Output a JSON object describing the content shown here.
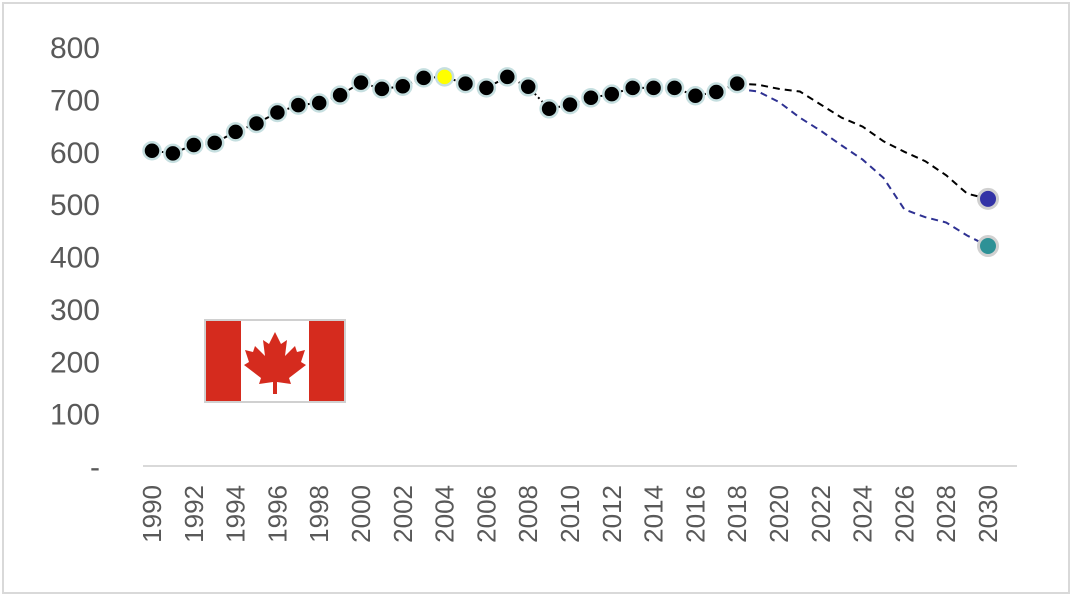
{
  "chart_data": {
    "type": "line",
    "title": "",
    "xlabel": "",
    "ylabel": "",
    "xlim": [
      1990,
      2030
    ],
    "ylim": [
      0,
      800
    ],
    "y_ticks": [
      {
        "value": 800,
        "label": "800"
      },
      {
        "value": 700,
        "label": "700"
      },
      {
        "value": 600,
        "label": "600"
      },
      {
        "value": 500,
        "label": "500"
      },
      {
        "value": 400,
        "label": "400"
      },
      {
        "value": 300,
        "label": "300"
      },
      {
        "value": 200,
        "label": "200"
      },
      {
        "value": 100,
        "label": "100"
      },
      {
        "value": 0,
        "label": "-"
      }
    ],
    "x_ticks": [
      "1990",
      "1992",
      "1994",
      "1996",
      "1998",
      "2000",
      "2002",
      "2004",
      "2006",
      "2008",
      "2010",
      "2012",
      "2014",
      "2016",
      "2018",
      "2020",
      "2022",
      "2024",
      "2026",
      "2028",
      "2030"
    ],
    "grid": false,
    "legend": "none",
    "series": [
      {
        "style": "markers-dash-dot",
        "color": "#000000",
        "marker_edge": "#c6dfe0",
        "highlight": {
          "year": 2004,
          "color": "#ffff00"
        },
        "x": [
          1990,
          1991,
          1992,
          1993,
          1994,
          1995,
          1996,
          1997,
          1998,
          1999,
          2000,
          2001,
          2002,
          2003,
          2004,
          2005,
          2006,
          2007,
          2008,
          2009,
          2010,
          2011,
          2012,
          2013,
          2014,
          2015,
          2016,
          2017,
          2018
        ],
        "y": [
          602,
          597,
          613,
          617,
          638,
          654,
          675,
          689,
          693,
          708,
          732,
          720,
          725,
          741,
          743,
          730,
          722,
          743,
          724,
          682,
          690,
          703,
          710,
          722,
          722,
          722,
          707,
          714,
          730
        ]
      },
      {
        "style": "dashed",
        "color": "#000000",
        "x": [
          2018,
          2019,
          2020,
          2021,
          2022,
          2023,
          2024,
          2025,
          2026,
          2027,
          2028,
          2029,
          2030
        ],
        "y": [
          730,
          728,
          720,
          715,
          690,
          665,
          648,
          620,
          600,
          582,
          555,
          520,
          510
        ]
      },
      {
        "style": "dashed",
        "color": "#2e3192",
        "x": [
          2018,
          2019,
          2020,
          2021,
          2022,
          2023,
          2024,
          2025,
          2026,
          2027,
          2028,
          2029,
          2030
        ],
        "y": [
          720,
          715,
          695,
          665,
          640,
          612,
          585,
          550,
          490,
          475,
          465,
          440,
          420
        ]
      }
    ],
    "end_points": [
      {
        "year": 2030,
        "value": 510,
        "color": "#3333a6"
      },
      {
        "year": 2030,
        "value": 420,
        "color": "#2e9196"
      }
    ]
  },
  "flag": {
    "icon": "canada-flag-icon",
    "red": "#d52b1e",
    "white": "#ffffff"
  }
}
